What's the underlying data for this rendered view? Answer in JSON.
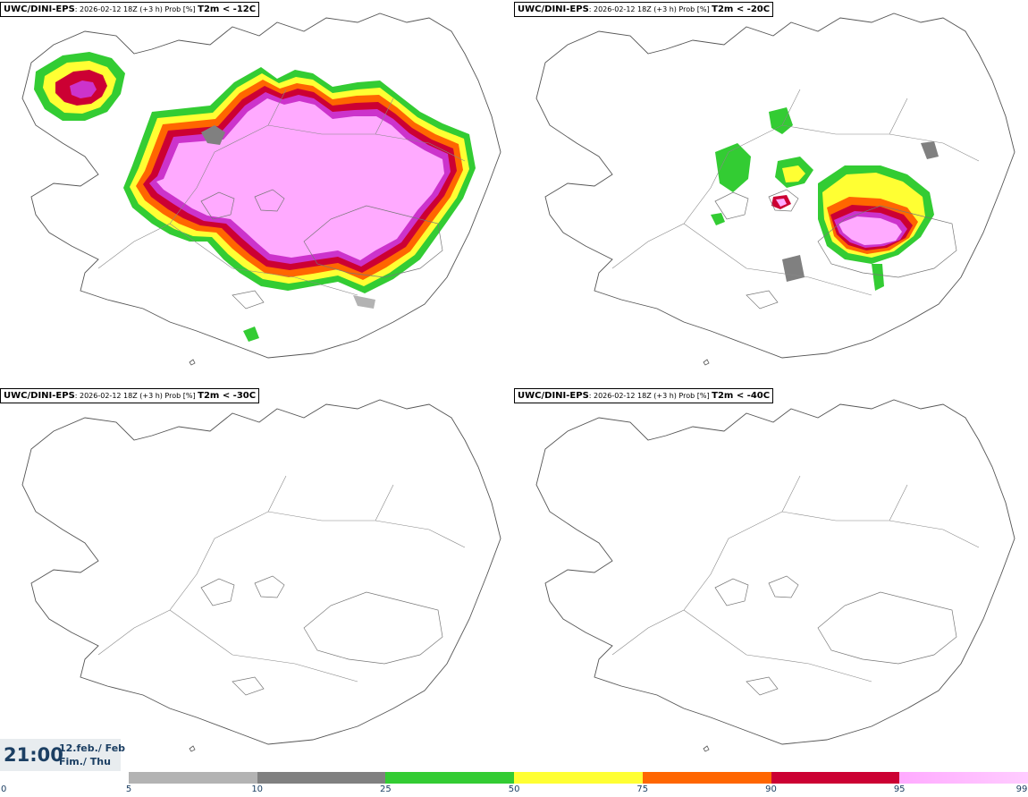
{
  "panels": [
    {
      "model": "UWC/DINI-EPS",
      "info": ": 2026-02-12 18Z (+3 h) Prob [%]",
      "threshold": "T2m < -12C"
    },
    {
      "model": "UWC/DINI-EPS",
      "info": ": 2026-02-12 18Z (+3 h) Prob [%]",
      "threshold": "T2m < -20C"
    },
    {
      "model": "UWC/DINI-EPS",
      "info": ": 2026-02-12 18Z (+3 h) Prob [%]",
      "threshold": "T2m < -30C"
    },
    {
      "model": "UWC/DINI-EPS",
      "info": ": 2026-02-12 18Z (+3 h) Prob [%]",
      "threshold": "T2m < -40C"
    }
  ],
  "time": {
    "clock": "21:00",
    "date_line1": "12.feb./ Feb",
    "date_line2": "Fim./ Thu"
  },
  "colorbar": {
    "ticks": [
      "0",
      "5",
      "10",
      "25",
      "50",
      "75",
      "90",
      "95",
      "99"
    ],
    "colors": [
      "#ffffff",
      "#b3b3b3",
      "#808080",
      "#33cc33",
      "#ffff33",
      "#ff6600",
      "#cc0033",
      "#cc33cc",
      "#ffaaff"
    ],
    "gradient_end": "#ffccff"
  }
}
